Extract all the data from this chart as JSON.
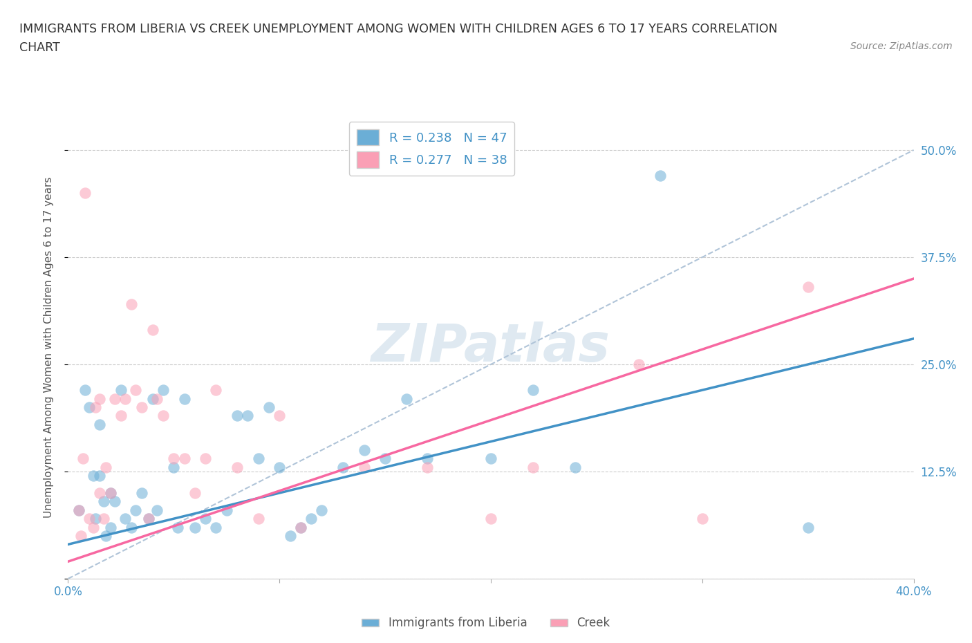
{
  "title_line1": "IMMIGRANTS FROM LIBERIA VS CREEK UNEMPLOYMENT AMONG WOMEN WITH CHILDREN AGES 6 TO 17 YEARS CORRELATION",
  "title_line2": "CHART",
  "source": "Source: ZipAtlas.com",
  "ylabel": "Unemployment Among Women with Children Ages 6 to 17 years",
  "xlim": [
    0.0,
    0.4
  ],
  "ylim": [
    0.0,
    0.54
  ],
  "yticks": [
    0.0,
    0.125,
    0.25,
    0.375,
    0.5
  ],
  "ytick_labels": [
    "",
    "12.5%",
    "25.0%",
    "37.5%",
    "50.0%"
  ],
  "xticks": [
    0.0,
    0.1,
    0.2,
    0.3,
    0.4
  ],
  "xtick_labels": [
    "0.0%",
    "",
    "",
    "",
    "40.0%"
  ],
  "watermark": "ZIPatlas",
  "legend_label1": "Immigrants from Liberia",
  "legend_label2": "Creek",
  "R1": 0.238,
  "N1": 47,
  "R2": 0.277,
  "N2": 38,
  "color_blue": "#6baed6",
  "color_pink": "#fa9fb5",
  "color_blue_line": "#4292c6",
  "color_pink_line": "#f768a1",
  "color_dashed_line": "#b0c4d8",
  "blue_x": [
    0.005,
    0.008,
    0.01,
    0.012,
    0.013,
    0.015,
    0.015,
    0.017,
    0.018,
    0.02,
    0.02,
    0.022,
    0.025,
    0.027,
    0.03,
    0.032,
    0.035,
    0.038,
    0.04,
    0.042,
    0.045,
    0.05,
    0.052,
    0.055,
    0.06,
    0.065,
    0.07,
    0.075,
    0.08,
    0.085,
    0.09,
    0.095,
    0.1,
    0.105,
    0.11,
    0.115,
    0.12,
    0.13,
    0.14,
    0.15,
    0.16,
    0.17,
    0.2,
    0.22,
    0.24,
    0.28,
    0.35
  ],
  "blue_y": [
    0.08,
    0.22,
    0.2,
    0.12,
    0.07,
    0.18,
    0.12,
    0.09,
    0.05,
    0.1,
    0.06,
    0.09,
    0.22,
    0.07,
    0.06,
    0.08,
    0.1,
    0.07,
    0.21,
    0.08,
    0.22,
    0.13,
    0.06,
    0.21,
    0.06,
    0.07,
    0.06,
    0.08,
    0.19,
    0.19,
    0.14,
    0.2,
    0.13,
    0.05,
    0.06,
    0.07,
    0.08,
    0.13,
    0.15,
    0.14,
    0.21,
    0.14,
    0.14,
    0.22,
    0.13,
    0.47,
    0.06
  ],
  "pink_x": [
    0.005,
    0.006,
    0.007,
    0.008,
    0.01,
    0.012,
    0.013,
    0.015,
    0.015,
    0.017,
    0.018,
    0.02,
    0.022,
    0.025,
    0.027,
    0.03,
    0.032,
    0.035,
    0.038,
    0.04,
    0.042,
    0.045,
    0.05,
    0.055,
    0.06,
    0.065,
    0.07,
    0.08,
    0.09,
    0.1,
    0.11,
    0.14,
    0.17,
    0.2,
    0.22,
    0.27,
    0.3,
    0.35
  ],
  "pink_y": [
    0.08,
    0.05,
    0.14,
    0.45,
    0.07,
    0.06,
    0.2,
    0.21,
    0.1,
    0.07,
    0.13,
    0.1,
    0.21,
    0.19,
    0.21,
    0.32,
    0.22,
    0.2,
    0.07,
    0.29,
    0.21,
    0.19,
    0.14,
    0.14,
    0.1,
    0.14,
    0.22,
    0.13,
    0.07,
    0.19,
    0.06,
    0.13,
    0.13,
    0.07,
    0.13,
    0.25,
    0.07,
    0.34
  ],
  "line_blue_x0": 0.0,
  "line_blue_y0": 0.04,
  "line_blue_x1": 0.4,
  "line_blue_y1": 0.28,
  "line_pink_x0": 0.0,
  "line_pink_y0": 0.02,
  "line_pink_x1": 0.4,
  "line_pink_y1": 0.35,
  "line_dash_x0": 0.0,
  "line_dash_y0": 0.0,
  "line_dash_x1": 0.4,
  "line_dash_y1": 0.5
}
